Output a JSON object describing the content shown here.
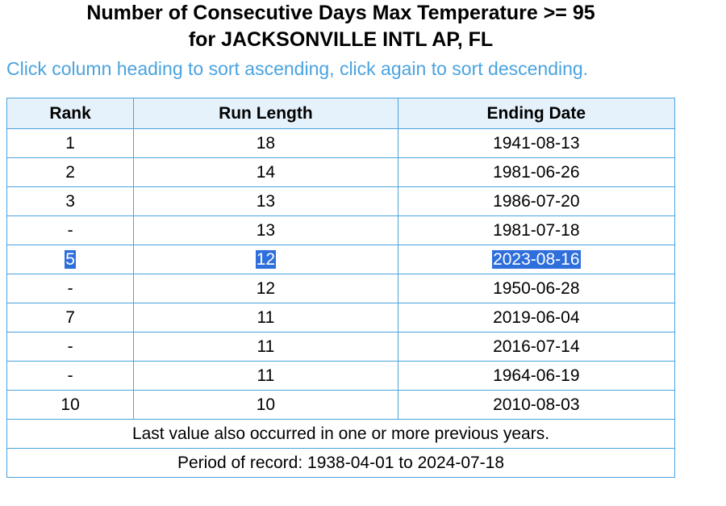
{
  "title": {
    "line1": "Number of Consecutive Days Max Temperature >= 95",
    "line2": "for JACKSONVILLE INTL AP, FL"
  },
  "hint": "Click column heading to sort ascending, click again to sort descending.",
  "table": {
    "headers": [
      "Rank",
      "Run Length",
      "Ending Date"
    ],
    "rows": [
      {
        "rank": "1",
        "run": "18",
        "date": "1941-08-13",
        "selected": false
      },
      {
        "rank": "2",
        "run": "14",
        "date": "1981-06-26",
        "selected": false
      },
      {
        "rank": "3",
        "run": "13",
        "date": "1986-07-20",
        "selected": false
      },
      {
        "rank": "-",
        "run": "13",
        "date": "1981-07-18",
        "selected": false
      },
      {
        "rank": "5",
        "run": "12",
        "date": "2023-08-16",
        "selected": true
      },
      {
        "rank": "-",
        "run": "12",
        "date": "1950-06-28",
        "selected": false
      },
      {
        "rank": "7",
        "run": "11",
        "date": "2019-06-04",
        "selected": false
      },
      {
        "rank": "-",
        "run": "11",
        "date": "2016-07-14",
        "selected": false
      },
      {
        "rank": "-",
        "run": "11",
        "date": "1964-06-19",
        "selected": false
      },
      {
        "rank": "10",
        "run": "10",
        "date": "2010-08-03",
        "selected": false
      }
    ],
    "footnote": "Last value also occurred in one or more previous years.",
    "period": "Period of record: 1938-04-01 to 2024-07-18"
  },
  "colors": {
    "hint_text": "#4aa3df",
    "border": "#4aa3df",
    "header_bg": "#e6f2fb",
    "selection_bg": "#2f6fdc"
  }
}
